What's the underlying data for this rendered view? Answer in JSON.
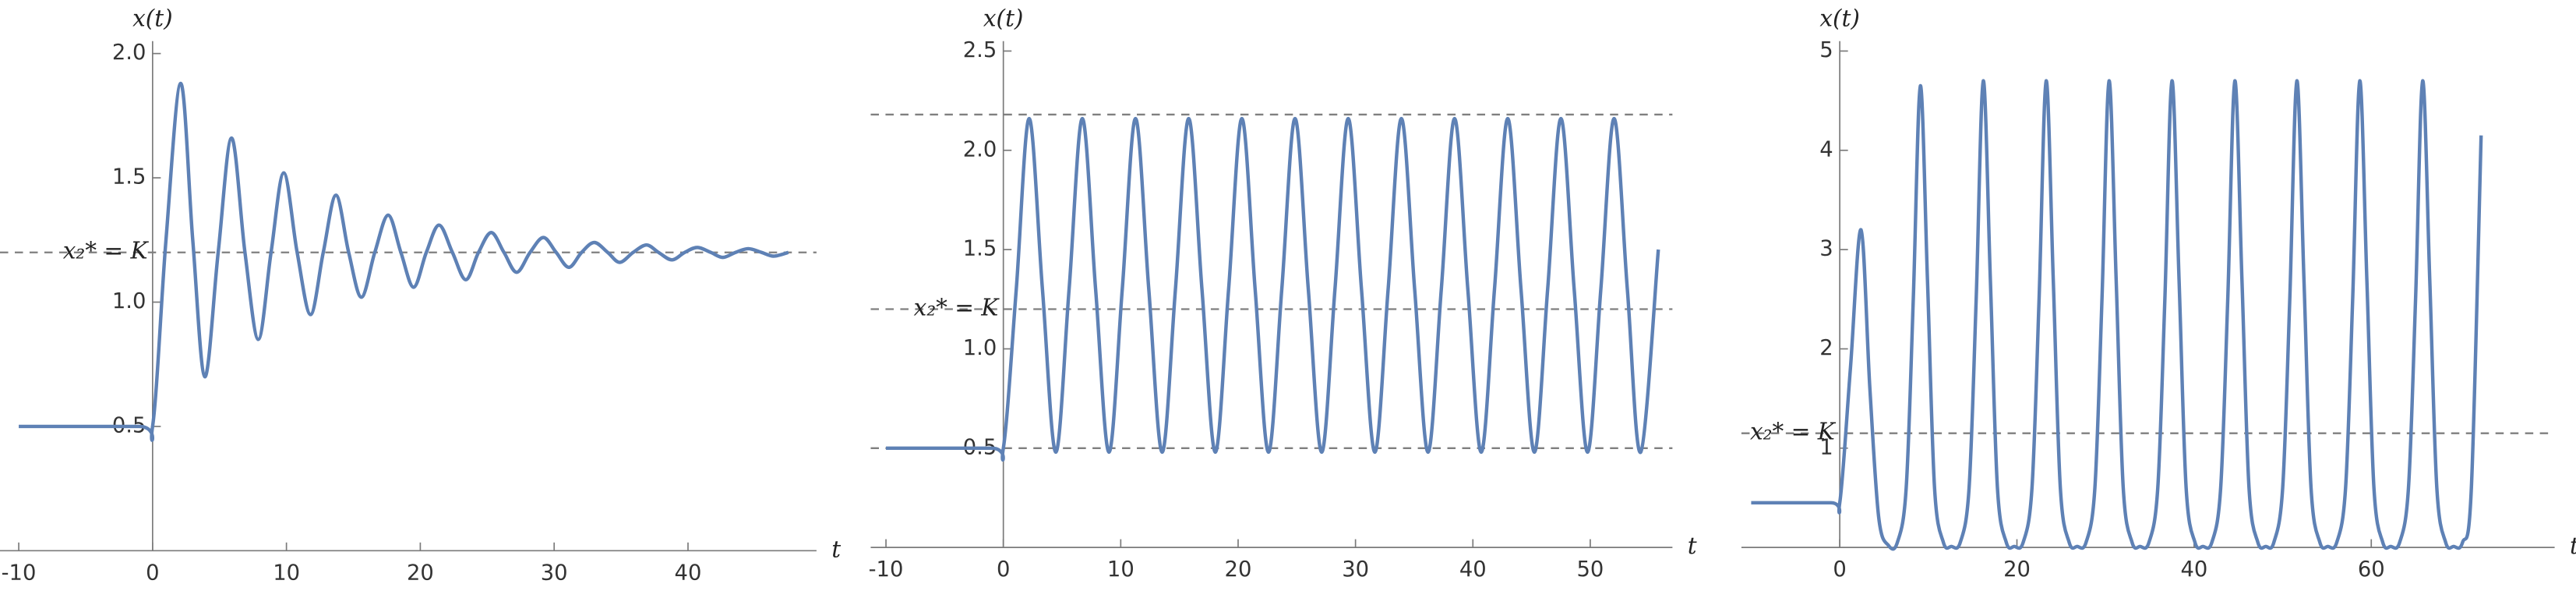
{
  "chart_data": [
    {
      "type": "line",
      "x_label": "t",
      "y_label": "x(t)",
      "xlim": [
        -11.4,
        49.6
      ],
      "ylim": [
        0,
        2.05
      ],
      "xticks": [
        -10,
        0,
        10,
        20,
        30,
        40
      ],
      "yticks": [
        0.5,
        {
          "value": 1,
          "label": "1.0"
        },
        1.5,
        {
          "value": 2,
          "label": "2.0"
        }
      ],
      "reference_lines": [
        {
          "y": 1.2,
          "label": "x₂* = K"
        }
      ],
      "x": [
        -10,
        -1,
        0,
        1,
        2.1,
        3.0,
        3.9,
        4.9,
        5.9,
        6.9,
        7.9,
        8.85,
        9.8,
        10.8,
        11.8,
        12.75,
        13.7,
        14.65,
        15.6,
        16.6,
        17.6,
        18.55,
        19.5,
        20.45,
        21.4,
        22.4,
        23.4,
        24.35,
        25.3,
        26.25,
        27.2,
        28.2,
        29.2,
        30.15,
        31.1,
        32.05,
        33.0,
        34.0,
        34.9,
        35.9,
        36.9,
        37.8,
        38.8,
        39.75,
        40.7,
        41.7,
        42.6,
        43.55,
        44.5,
        45.5,
        46.4,
        47.5
      ],
      "series": [
        {
          "color": "#5e81b5",
          "values": [
            0.5,
            0.5,
            0.5,
            1.25,
            1.88,
            1.25,
            0.7,
            1.2,
            1.66,
            1.2,
            0.85,
            1.2,
            1.52,
            1.2,
            0.95,
            1.2,
            1.43,
            1.2,
            1.02,
            1.2,
            1.35,
            1.2,
            1.06,
            1.2,
            1.31,
            1.2,
            1.09,
            1.2,
            1.28,
            1.2,
            1.12,
            1.2,
            1.26,
            1.2,
            1.14,
            1.2,
            1.24,
            1.2,
            1.16,
            1.2,
            1.23,
            1.2,
            1.17,
            1.2,
            1.22,
            1.2,
            1.18,
            1.2,
            1.215,
            1.2,
            1.185,
            1.2
          ]
        }
      ]
    },
    {
      "type": "line",
      "x_label": "t",
      "y_label": "x(t)",
      "xlim": [
        -11.3,
        57
      ],
      "ylim": [
        0,
        2.55
      ],
      "xticks": [
        -10,
        0,
        10,
        20,
        30,
        40,
        50
      ],
      "yticks": [
        0.5,
        {
          "value": 1,
          "label": "1.0"
        },
        1.5,
        {
          "value": 2,
          "label": "2.0"
        },
        2.5
      ],
      "reference_lines": [
        {
          "y": 2.18
        },
        {
          "y": 1.2,
          "label": "x₂* = K"
        },
        {
          "y": 0.5
        }
      ],
      "x": [
        -10,
        -1,
        0,
        1.1,
        2.2,
        3.33,
        4.47,
        5.6,
        6.73,
        7.86,
        9.0,
        10.13,
        11.26,
        12.39,
        13.53,
        14.66,
        15.79,
        16.92,
        18.06,
        19.19,
        20.32,
        21.45,
        22.59,
        23.72,
        24.85,
        25.98,
        27.12,
        28.25,
        29.38,
        30.51,
        31.65,
        32.78,
        33.91,
        35.04,
        36.18,
        37.31,
        38.44,
        39.57,
        40.71,
        41.84,
        42.97,
        44.1,
        45.24,
        46.37,
        47.5,
        48.63,
        49.77,
        50.9,
        52.03,
        53.16,
        54.3,
        55.8
      ],
      "series": [
        {
          "color": "#5e81b5",
          "values": [
            0.5,
            0.5,
            0.5,
            1.3,
            2.16,
            1.3,
            0.48,
            1.3,
            2.16,
            1.3,
            0.48,
            1.3,
            2.16,
            1.3,
            0.48,
            1.3,
            2.16,
            1.3,
            0.48,
            1.3,
            2.16,
            1.3,
            0.48,
            1.3,
            2.16,
            1.3,
            0.48,
            1.3,
            2.16,
            1.3,
            0.48,
            1.3,
            2.16,
            1.3,
            0.48,
            1.3,
            2.16,
            1.3,
            0.48,
            1.3,
            2.16,
            1.3,
            0.48,
            1.3,
            2.16,
            1.3,
            0.48,
            1.3,
            2.16,
            1.3,
            0.48,
            1.5
          ]
        }
      ]
    },
    {
      "type": "line",
      "x_label": "t",
      "y_label": "x(t)",
      "xlim": [
        -11.1,
        80.7
      ],
      "ylim": [
        0,
        5.1
      ],
      "xticks": [
        0,
        20,
        40,
        60
      ],
      "yticks": [
        1,
        2,
        3,
        4,
        5
      ],
      "reference_lines": [
        {
          "y": 1.15,
          "label": "x₂* = K"
        }
      ],
      "x": [
        -10,
        -1,
        0,
        1.2,
        2.4,
        3.4,
        4.4,
        5.5,
        6.5,
        7.5,
        8.3,
        9.1,
        9.9,
        10.7,
        11.7,
        12.6,
        13.6,
        14.6,
        15.4,
        16.2,
        17.0,
        17.8,
        18.8,
        19.7,
        20.7,
        21.7,
        22.5,
        23.3,
        24.1,
        24.9,
        25.9,
        26.8,
        27.8,
        28.8,
        29.6,
        30.4,
        31.2,
        32.0,
        33.0,
        33.9,
        34.9,
        35.9,
        36.7,
        37.5,
        38.3,
        39.1,
        40.1,
        41.0,
        42.0,
        43.0,
        43.8,
        44.6,
        45.4,
        46.2,
        47.2,
        48.1,
        49.0,
        50.0,
        50.8,
        51.6,
        52.4,
        53.2,
        54.2,
        55.1,
        56.1,
        57.1,
        57.9,
        58.7,
        59.5,
        60.3,
        61.3,
        62.2,
        63.2,
        64.2,
        65.0,
        65.8,
        66.6,
        67.4,
        68.4,
        69.3,
        70.3,
        71.3,
        72.4
      ],
      "series": [
        {
          "color": "#5e81b5",
          "values": [
            0.45,
            0.45,
            0.45,
            1.8,
            3.2,
            1.6,
            0.3,
            0.02,
            0.05,
            0.6,
            2.5,
            4.65,
            2.7,
            0.6,
            0.05,
            0.01,
            0.05,
            0.6,
            2.5,
            4.7,
            2.7,
            0.6,
            0.05,
            0.01,
            0.05,
            0.6,
            2.5,
            4.7,
            2.7,
            0.6,
            0.05,
            0.01,
            0.05,
            0.6,
            2.5,
            4.7,
            2.7,
            0.6,
            0.05,
            0.01,
            0.05,
            0.6,
            2.5,
            4.7,
            2.7,
            0.6,
            0.05,
            0.01,
            0.05,
            0.6,
            2.5,
            4.7,
            2.7,
            0.6,
            0.05,
            0.01,
            0.05,
            0.6,
            2.5,
            4.7,
            2.7,
            0.6,
            0.05,
            0.01,
            0.05,
            0.6,
            2.5,
            4.7,
            2.7,
            0.6,
            0.05,
            0.01,
            0.05,
            0.6,
            2.5,
            4.7,
            2.7,
            0.6,
            0.05,
            0.01,
            0.05,
            0.6,
            4.15
          ]
        }
      ]
    }
  ]
}
